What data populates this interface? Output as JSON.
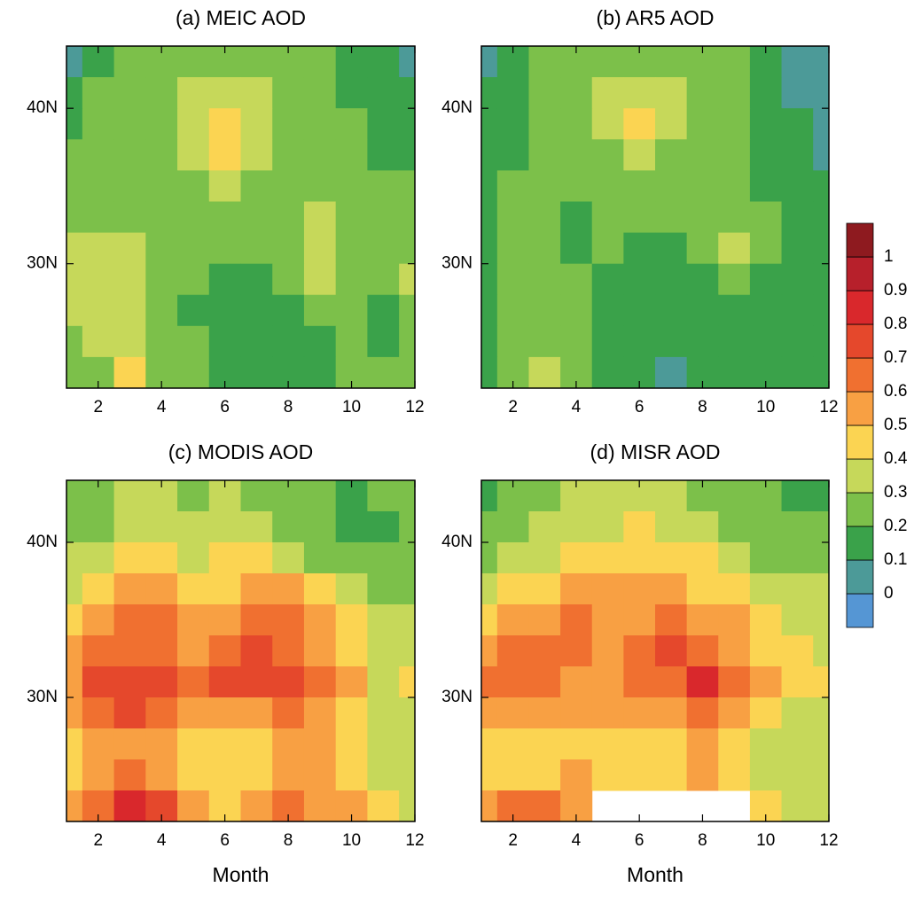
{
  "chart_data": [
    {
      "type": "heatmap",
      "title": "(a) MEIC AOD",
      "x": [
        1,
        2,
        3,
        4,
        5,
        6,
        7,
        8,
        9,
        10,
        11,
        12
      ],
      "y": [
        43,
        41,
        39,
        37,
        35,
        33,
        31,
        29,
        27,
        25,
        23
      ],
      "values": [
        [
          0.08,
          0.18,
          0.22,
          0.22,
          0.22,
          0.25,
          0.25,
          0.22,
          0.2,
          0.18,
          0.1,
          0.08
        ],
        [
          0.12,
          0.2,
          0.22,
          0.25,
          0.32,
          0.35,
          0.32,
          0.25,
          0.22,
          0.18,
          0.15,
          0.1
        ],
        [
          0.18,
          0.22,
          0.25,
          0.25,
          0.33,
          0.45,
          0.32,
          0.25,
          0.22,
          0.2,
          0.15,
          0.15
        ],
        [
          0.2,
          0.22,
          0.25,
          0.25,
          0.3,
          0.42,
          0.3,
          0.25,
          0.22,
          0.22,
          0.18,
          0.18
        ],
        [
          0.22,
          0.25,
          0.25,
          0.25,
          0.28,
          0.35,
          0.28,
          0.25,
          0.25,
          0.22,
          0.2,
          0.2
        ],
        [
          0.25,
          0.28,
          0.25,
          0.25,
          0.25,
          0.28,
          0.25,
          0.25,
          0.32,
          0.25,
          0.22,
          0.22
        ],
        [
          0.32,
          0.38,
          0.3,
          0.25,
          0.25,
          0.25,
          0.25,
          0.28,
          0.38,
          0.28,
          0.22,
          0.25
        ],
        [
          0.32,
          0.35,
          0.3,
          0.25,
          0.2,
          0.18,
          0.18,
          0.22,
          0.3,
          0.25,
          0.22,
          0.3
        ],
        [
          0.3,
          0.3,
          0.32,
          0.25,
          0.18,
          0.15,
          0.15,
          0.15,
          0.22,
          0.22,
          0.18,
          0.25
        ],
        [
          0.28,
          0.3,
          0.3,
          0.25,
          0.2,
          0.15,
          0.15,
          0.15,
          0.18,
          0.22,
          0.15,
          0.25
        ],
        [
          0.25,
          0.28,
          0.4,
          0.28,
          0.22,
          0.18,
          0.15,
          0.15,
          0.18,
          0.2,
          0.2,
          0.22
        ]
      ],
      "xlim": [
        1,
        12
      ],
      "ylim": [
        22,
        44
      ],
      "xticks": [
        2,
        4,
        6,
        8,
        10,
        12
      ],
      "yticks": [
        {
          "value": 30,
          "label": "30N"
        },
        {
          "value": 40,
          "label": "40N"
        }
      ]
    },
    {
      "type": "heatmap",
      "title": "(b) AR5 AOD",
      "x": [
        1,
        2,
        3,
        4,
        5,
        6,
        7,
        8,
        9,
        10,
        11,
        12
      ],
      "y": [
        43,
        41,
        39,
        37,
        35,
        33,
        31,
        29,
        27,
        25,
        23
      ],
      "values": [
        [
          0.08,
          0.15,
          0.2,
          0.22,
          0.22,
          0.25,
          0.25,
          0.22,
          0.2,
          0.15,
          0.08,
          0.08
        ],
        [
          0.1,
          0.15,
          0.22,
          0.22,
          0.3,
          0.35,
          0.32,
          0.25,
          0.22,
          0.18,
          0.08,
          0.08
        ],
        [
          0.12,
          0.15,
          0.2,
          0.22,
          0.3,
          0.4,
          0.3,
          0.25,
          0.22,
          0.18,
          0.1,
          0.08
        ],
        [
          0.15,
          0.18,
          0.2,
          0.22,
          0.28,
          0.35,
          0.28,
          0.22,
          0.2,
          0.18,
          0.12,
          0.08
        ],
        [
          0.15,
          0.2,
          0.22,
          0.2,
          0.25,
          0.28,
          0.25,
          0.22,
          0.22,
          0.18,
          0.15,
          0.1
        ],
        [
          0.18,
          0.2,
          0.22,
          0.15,
          0.22,
          0.25,
          0.22,
          0.22,
          0.25,
          0.22,
          0.18,
          0.15
        ],
        [
          0.18,
          0.22,
          0.25,
          0.18,
          0.2,
          0.18,
          0.18,
          0.22,
          0.32,
          0.22,
          0.18,
          0.18
        ],
        [
          0.15,
          0.2,
          0.25,
          0.2,
          0.15,
          0.15,
          0.15,
          0.15,
          0.22,
          0.15,
          0.15,
          0.15
        ],
        [
          0.15,
          0.2,
          0.22,
          0.2,
          0.15,
          0.15,
          0.15,
          0.15,
          0.15,
          0.15,
          0.15,
          0.15
        ],
        [
          0.15,
          0.2,
          0.25,
          0.22,
          0.15,
          0.15,
          0.15,
          0.15,
          0.15,
          0.15,
          0.15,
          0.15
        ],
        [
          0.15,
          0.2,
          0.32,
          0.25,
          0.15,
          0.15,
          0.08,
          0.15,
          0.15,
          0.15,
          0.15,
          0.15
        ]
      ],
      "xlim": [
        1,
        12
      ],
      "ylim": [
        22,
        44
      ],
      "xticks": [
        2,
        4,
        6,
        8,
        10,
        12
      ],
      "yticks": [
        {
          "value": 30,
          "label": "30N"
        },
        {
          "value": 40,
          "label": "40N"
        }
      ]
    },
    {
      "type": "heatmap",
      "title": "(c) MODIS AOD",
      "xlabel": "Month",
      "x": [
        1,
        2,
        3,
        4,
        5,
        6,
        7,
        8,
        9,
        10,
        11,
        12
      ],
      "y": [
        43,
        41,
        39,
        37,
        35,
        33,
        31,
        29,
        27,
        25,
        23
      ],
      "values": [
        [
          0.25,
          0.28,
          0.3,
          0.32,
          0.28,
          0.3,
          0.25,
          0.2,
          0.2,
          0.15,
          0.2,
          0.2
        ],
        [
          0.28,
          0.25,
          0.3,
          0.35,
          0.3,
          0.3,
          0.3,
          0.28,
          0.2,
          0.15,
          0.18,
          0.2
        ],
        [
          0.3,
          0.32,
          0.4,
          0.45,
          0.35,
          0.4,
          0.45,
          0.35,
          0.25,
          0.22,
          0.22,
          0.2
        ],
        [
          0.35,
          0.45,
          0.5,
          0.55,
          0.45,
          0.45,
          0.55,
          0.5,
          0.4,
          0.3,
          0.25,
          0.25
        ],
        [
          0.45,
          0.55,
          0.6,
          0.6,
          0.5,
          0.5,
          0.6,
          0.6,
          0.5,
          0.4,
          0.3,
          0.3
        ],
        [
          0.5,
          0.62,
          0.65,
          0.62,
          0.55,
          0.6,
          0.7,
          0.65,
          0.55,
          0.45,
          0.35,
          0.32
        ],
        [
          0.55,
          0.7,
          0.75,
          0.7,
          0.65,
          0.75,
          0.72,
          0.72,
          0.6,
          0.5,
          0.38,
          0.45
        ],
        [
          0.5,
          0.62,
          0.7,
          0.62,
          0.5,
          0.5,
          0.55,
          0.62,
          0.55,
          0.48,
          0.35,
          0.35
        ],
        [
          0.45,
          0.55,
          0.55,
          0.55,
          0.45,
          0.45,
          0.4,
          0.5,
          0.5,
          0.42,
          0.3,
          0.3
        ],
        [
          0.45,
          0.55,
          0.6,
          0.55,
          0.45,
          0.45,
          0.45,
          0.5,
          0.5,
          0.45,
          0.35,
          0.3
        ],
        [
          0.5,
          0.6,
          0.8,
          0.7,
          0.5,
          0.45,
          0.5,
          0.6,
          0.55,
          0.5,
          0.4,
          0.35
        ]
      ],
      "xlim": [
        1,
        12
      ],
      "ylim": [
        22,
        44
      ],
      "xticks": [
        2,
        4,
        6,
        8,
        10,
        12
      ],
      "yticks": [
        {
          "value": 30,
          "label": "30N"
        },
        {
          "value": 40,
          "label": "40N"
        }
      ]
    },
    {
      "type": "heatmap",
      "title": "(d) MISR AOD",
      "xlabel": "Month",
      "x": [
        1,
        2,
        3,
        4,
        5,
        6,
        7,
        8,
        9,
        10,
        11,
        12
      ],
      "y": [
        43,
        41,
        39,
        37,
        35,
        33,
        31,
        29,
        27,
        25,
        23
      ],
      "values": [
        [
          0.15,
          0.2,
          0.25,
          0.3,
          0.3,
          0.35,
          0.3,
          0.28,
          0.25,
          0.2,
          0.15,
          0.15
        ],
        [
          0.2,
          0.25,
          0.3,
          0.35,
          0.35,
          0.4,
          0.35,
          0.3,
          0.25,
          0.2,
          0.2,
          0.2
        ],
        [
          0.25,
          0.3,
          0.35,
          0.4,
          0.45,
          0.45,
          0.45,
          0.4,
          0.3,
          0.25,
          0.22,
          0.2
        ],
        [
          0.35,
          0.4,
          0.45,
          0.5,
          0.5,
          0.5,
          0.5,
          0.45,
          0.4,
          0.35,
          0.3,
          0.3
        ],
        [
          0.45,
          0.5,
          0.55,
          0.6,
          0.55,
          0.55,
          0.6,
          0.55,
          0.5,
          0.45,
          0.35,
          0.3
        ],
        [
          0.55,
          0.6,
          0.65,
          0.6,
          0.55,
          0.65,
          0.72,
          0.65,
          0.55,
          0.45,
          0.4,
          0.35
        ],
        [
          0.6,
          0.65,
          0.6,
          0.55,
          0.55,
          0.62,
          0.65,
          0.8,
          0.6,
          0.5,
          0.4,
          0.4
        ],
        [
          0.5,
          0.55,
          0.5,
          0.5,
          0.5,
          0.55,
          0.5,
          0.6,
          0.55,
          0.45,
          0.35,
          0.35
        ],
        [
          0.45,
          0.45,
          0.45,
          0.45,
          0.45,
          0.45,
          0.45,
          0.5,
          0.45,
          0.35,
          0.3,
          0.3
        ],
        [
          0.45,
          0.45,
          0.45,
          0.5,
          0.45,
          0.45,
          0.45,
          0.5,
          0.45,
          0.35,
          0.3,
          0.3
        ],
        [
          0.55,
          0.6,
          0.6,
          0.5,
          null,
          null,
          null,
          null,
          null,
          0.4,
          0.3,
          0.35
        ]
      ],
      "xlim": [
        1,
        12
      ],
      "ylim": [
        22,
        44
      ],
      "xticks": [
        2,
        4,
        6,
        8,
        10,
        12
      ],
      "yticks": [
        {
          "value": 30,
          "label": "30N"
        },
        {
          "value": 40,
          "label": "40N"
        }
      ]
    }
  ],
  "colorbar": {
    "ticks": [
      0,
      0.1,
      0.2,
      0.3,
      0.4,
      0.5,
      0.6,
      0.7,
      0.8,
      0.9,
      1
    ],
    "colors": [
      "#5596d4",
      "#4c9a98",
      "#3aa24a",
      "#7cc04a",
      "#c6d85a",
      "#fbd452",
      "#f8a043",
      "#f07030",
      "#e5482c",
      "#d9282c",
      "#b7202b",
      "#8e1a1f"
    ]
  }
}
